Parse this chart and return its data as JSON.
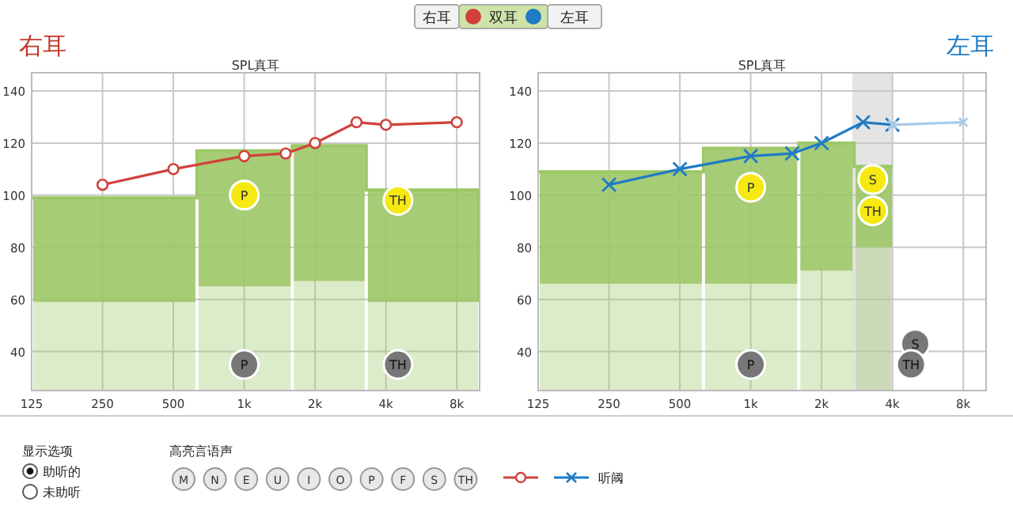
{
  "chart_data": [
    {
      "type": "line",
      "title": "右耳",
      "subtitle": "SPL真耳",
      "xlim": [
        125,
        10000
      ],
      "ylim": [
        25,
        147
      ],
      "xticks": [
        125,
        250,
        500,
        {
          "value": 1000,
          "label": "1k"
        },
        {
          "value": 2000,
          "label": "2k"
        },
        {
          "value": 4000,
          "label": "4k"
        },
        {
          "value": 8000,
          "label": "8k"
        }
      ],
      "yticks": [
        40,
        60,
        80,
        100,
        120,
        140
      ],
      "log": "x",
      "grid": true,
      "series": [
        {
          "type": "step",
          "color": "#9cc766",
          "x": [
            125,
            630,
            1600,
            3300,
            10000
          ],
          "values": [
            99,
            117,
            119,
            102,
            102
          ],
          "lower": [
            59,
            65,
            67,
            59,
            59
          ],
          "upper": [
            99,
            117,
            119,
            102,
            102
          ]
        },
        {
          "color": "#d0413b",
          "marker": "circle",
          "x": [
            250,
            500,
            1000,
            1500,
            2000,
            3000,
            4000,
            8000
          ],
          "values": [
            104,
            110,
            115,
            116,
            120,
            128,
            127,
            128
          ]
        }
      ],
      "annotations": [
        {
          "text": "P",
          "x": 1000,
          "y": 100
        },
        {
          "text": "P",
          "x": 1000,
          "y": 35
        },
        {
          "text": "TH",
          "x": 4500,
          "y": 98
        },
        {
          "text": "TH",
          "x": 4500,
          "y": 35
        }
      ]
    },
    {
      "type": "line",
      "title": "左耳",
      "subtitle": "SPL真耳",
      "xlim": [
        125,
        10000
      ],
      "ylim": [
        25,
        147
      ],
      "xticks": [
        125,
        250,
        500,
        {
          "value": 1000,
          "label": "1k"
        },
        {
          "value": 2000,
          "label": "2k"
        },
        {
          "value": 4000,
          "label": "4k"
        },
        {
          "value": 8000,
          "label": "8k"
        }
      ],
      "yticks": [
        40,
        60,
        80,
        100,
        120,
        140
      ],
      "log": "x",
      "grid": true,
      "legend": "bottom",
      "bands": [
        {
          "axis": "x",
          "from": 2700,
          "to": 4000,
          "color": "#e4e4e4"
        }
      ],
      "series": [
        {
          "type": "step",
          "color": "#9cc766",
          "x": [
            125,
            630,
            1600,
            2750,
            4000
          ],
          "values": [
            109,
            118,
            120,
            111,
            111
          ],
          "lower": [
            66,
            66,
            71,
            80,
            80
          ],
          "upper": [
            109,
            118,
            120,
            111,
            111
          ]
        },
        {
          "name": "听阈",
          "color": "#1f7bc4",
          "marker": "cross",
          "x": [
            250,
            500,
            1000,
            1500,
            2000,
            3000,
            4000
          ],
          "values": [
            104,
            110,
            115,
            116,
            120,
            128,
            127
          ]
        },
        {
          "color": "#a9cbe8",
          "marker": "cross",
          "x": [
            4000,
            8000
          ],
          "values": [
            127,
            128
          ]
        }
      ],
      "annotations": [
        {
          "text": "P",
          "x": 1000,
          "y": 103
        },
        {
          "text": "P",
          "x": 1000,
          "y": 35
        },
        {
          "text": "S",
          "x": 3300,
          "y": 106
        },
        {
          "text": "TH",
          "x": 3300,
          "y": 94
        },
        {
          "text": "S",
          "x": 5000,
          "y": 43
        },
        {
          "text": "TH",
          "x": 4800,
          "y": 35
        }
      ]
    },
    {
      "type": "other",
      "annotations": [
        "右耳",
        "双耳",
        "左耳",
        "显示选项",
        "助听的",
        "未助听",
        "高亮言语声",
        "M",
        "N",
        "E",
        "U",
        "I",
        "O",
        "P",
        "F",
        "S",
        "TH"
      ]
    }
  ]
}
